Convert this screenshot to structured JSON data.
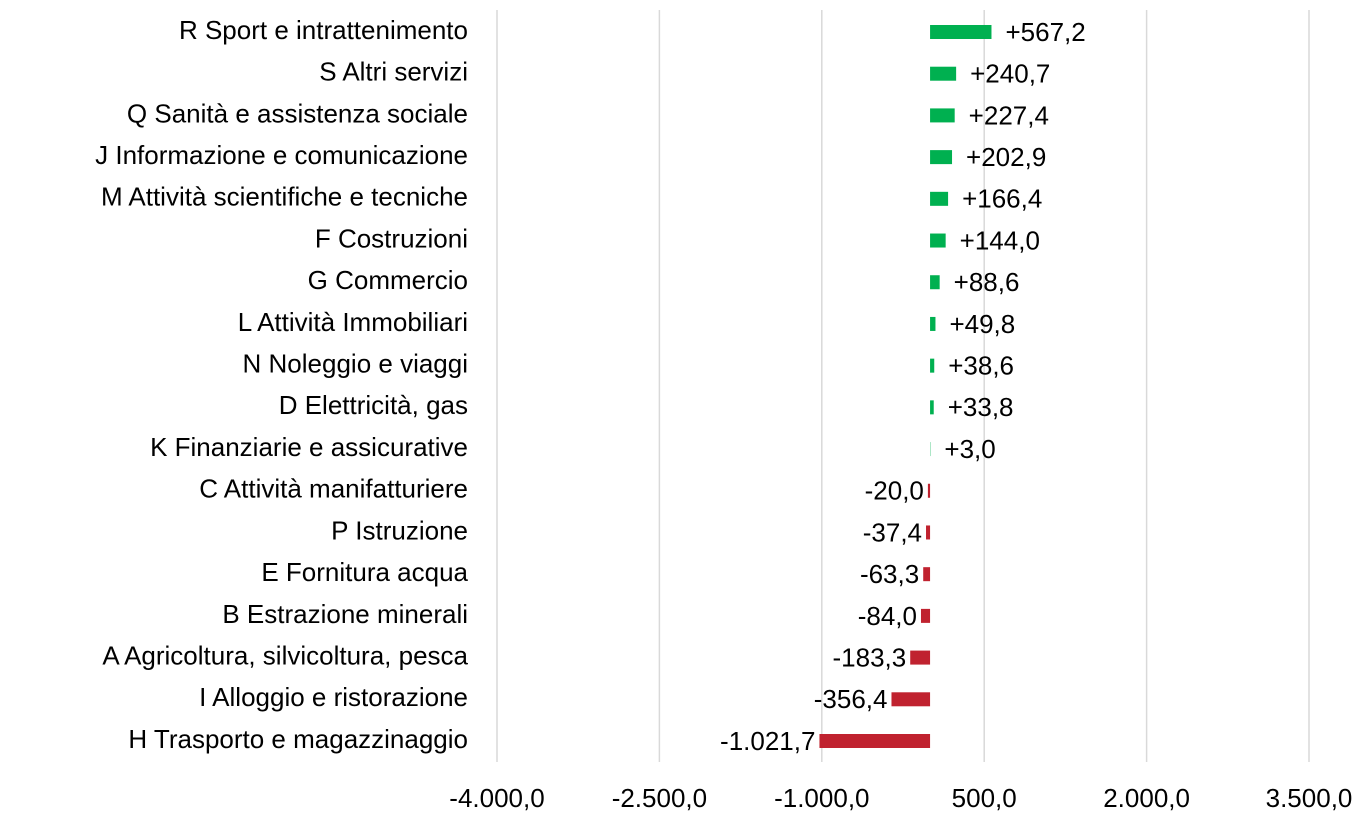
{
  "chart_data": {
    "type": "hbar",
    "categories": [
      "R Sport e intrattenimento",
      "S Altri servizi",
      "Q Sanità e assistenza sociale",
      "J Informazione e comunicazione",
      "M Attività scientifiche e tecniche",
      "F Costruzioni",
      "G Commercio",
      "L Attività Immobiliari",
      "N Noleggio e viaggi",
      "D Elettricità, gas",
      "K Finanziarie e assicurative",
      "C Attività manifatturiere",
      "P Istruzione",
      "E Fornitura acqua",
      "B Estrazione minerali",
      "A Agricoltura, silvicoltura, pesca",
      "I Alloggio e ristorazione",
      "H Trasporto e magazzinaggio"
    ],
    "values": [
      567.2,
      240.7,
      227.4,
      202.9,
      166.4,
      144.0,
      88.6,
      49.8,
      38.6,
      33.8,
      3.0,
      -20.0,
      -37.4,
      -63.3,
      -84.0,
      -183.3,
      -356.4,
      -1021.7
    ],
    "value_labels": [
      "+567,2",
      "+240,7",
      "+227,4",
      "+202,9",
      "+166,4",
      "+144,0",
      "+88,6",
      "+49,8",
      "+38,6",
      "+33,8",
      "+3,0",
      "-20,0",
      "-37,4",
      "-63,3",
      "-84,0",
      "-183,3",
      "-356,4",
      "-1.021,7"
    ],
    "color_positive": "#00b050",
    "color_negative": "#c0222f",
    "xlim": [
      -4000,
      3500
    ],
    "xticks": [
      {
        "value": -4000,
        "label": "-4.000,0"
      },
      {
        "value": -2500,
        "label": "-2.500,0"
      },
      {
        "value": -1000,
        "label": "-1.000,0"
      },
      {
        "value": 500,
        "label": "500,0"
      },
      {
        "value": 2000,
        "label": "2.000,0"
      },
      {
        "value": 3500,
        "label": "3.500,0"
      }
    ],
    "grid": true
  }
}
